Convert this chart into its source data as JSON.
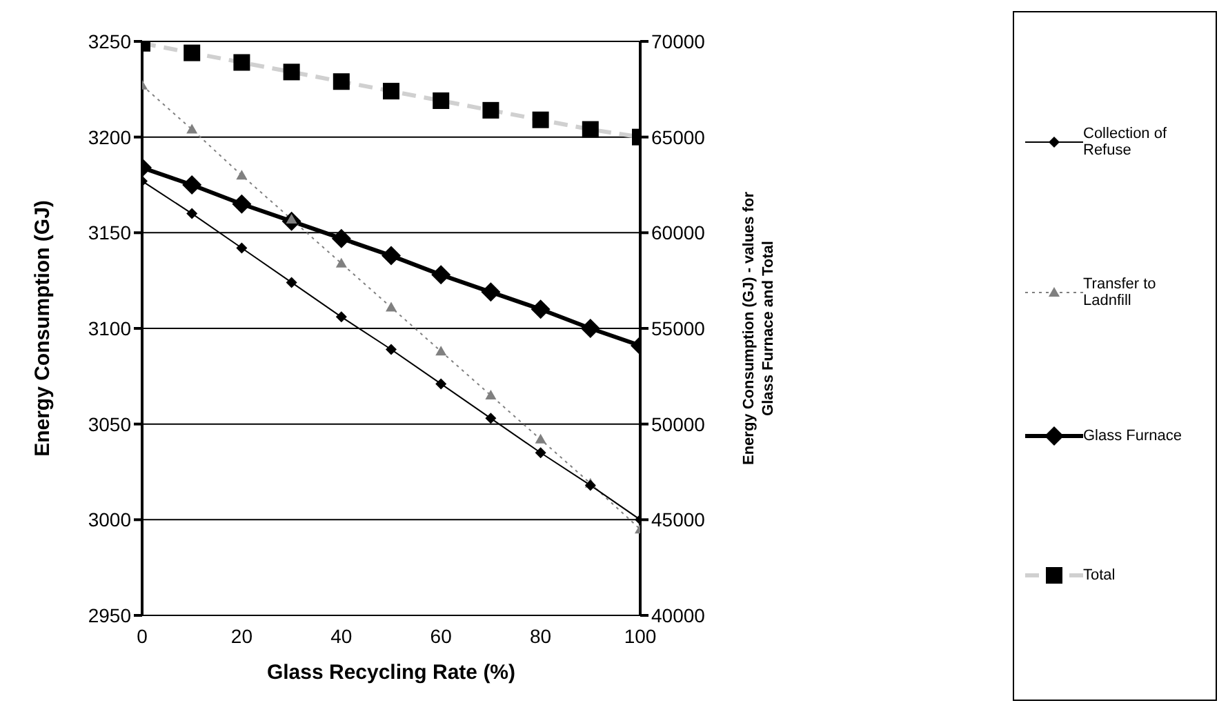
{
  "chart_data": {
    "type": "line",
    "xlabel": "Glass Recycling Rate (%)",
    "ylabel": "Energy Consumption (GJ)",
    "y2label": "Energy Consumption (GJ) - values for Glass Furnace and Total",
    "x": [
      0,
      10,
      20,
      30,
      40,
      50,
      60,
      70,
      80,
      90,
      100
    ],
    "xlim": [
      0,
      100
    ],
    "xticks": [
      0,
      20,
      40,
      60,
      80,
      100
    ],
    "ylim": [
      2950,
      3250
    ],
    "yticks": [
      2950,
      3000,
      3050,
      3100,
      3150,
      3200,
      3250
    ],
    "y2lim": [
      40000,
      70000
    ],
    "y2ticks": [
      40000,
      45000,
      50000,
      55000,
      60000,
      65000,
      70000
    ],
    "grid": "y",
    "legend": "right",
    "series": [
      {
        "name": "Collection of Refuse",
        "color": "#000000",
        "marker": "diamond",
        "line_style": "solid",
        "values": [
          3177,
          3160,
          3142,
          3124,
          3106,
          3089,
          3071,
          3053,
          3035,
          3018,
          3000
        ]
      },
      {
        "name": "Transfer to Ladnfill",
        "color": "#808080",
        "marker": "triangle",
        "line_style": "dotted",
        "values": [
          3227,
          3204,
          3180,
          3157,
          3134,
          3111,
          3088,
          3065,
          3042,
          3019,
          2995
        ]
      },
      {
        "name": "Glass Furnace",
        "color": "#000000",
        "marker": "diamond",
        "line_style": "solid",
        "axis": "y2",
        "values": [
          63400,
          62500,
          61500,
          60600,
          59700,
          58800,
          57800,
          56900,
          56000,
          55000,
          54100
        ]
      },
      {
        "name": "Total",
        "color": "#d0d0d0",
        "marker": "square",
        "line_style": "dashed",
        "axis": "y2",
        "values": [
          69900,
          69400,
          68900,
          68400,
          67900,
          67400,
          66900,
          66400,
          65900,
          65400,
          65000
        ]
      }
    ]
  }
}
